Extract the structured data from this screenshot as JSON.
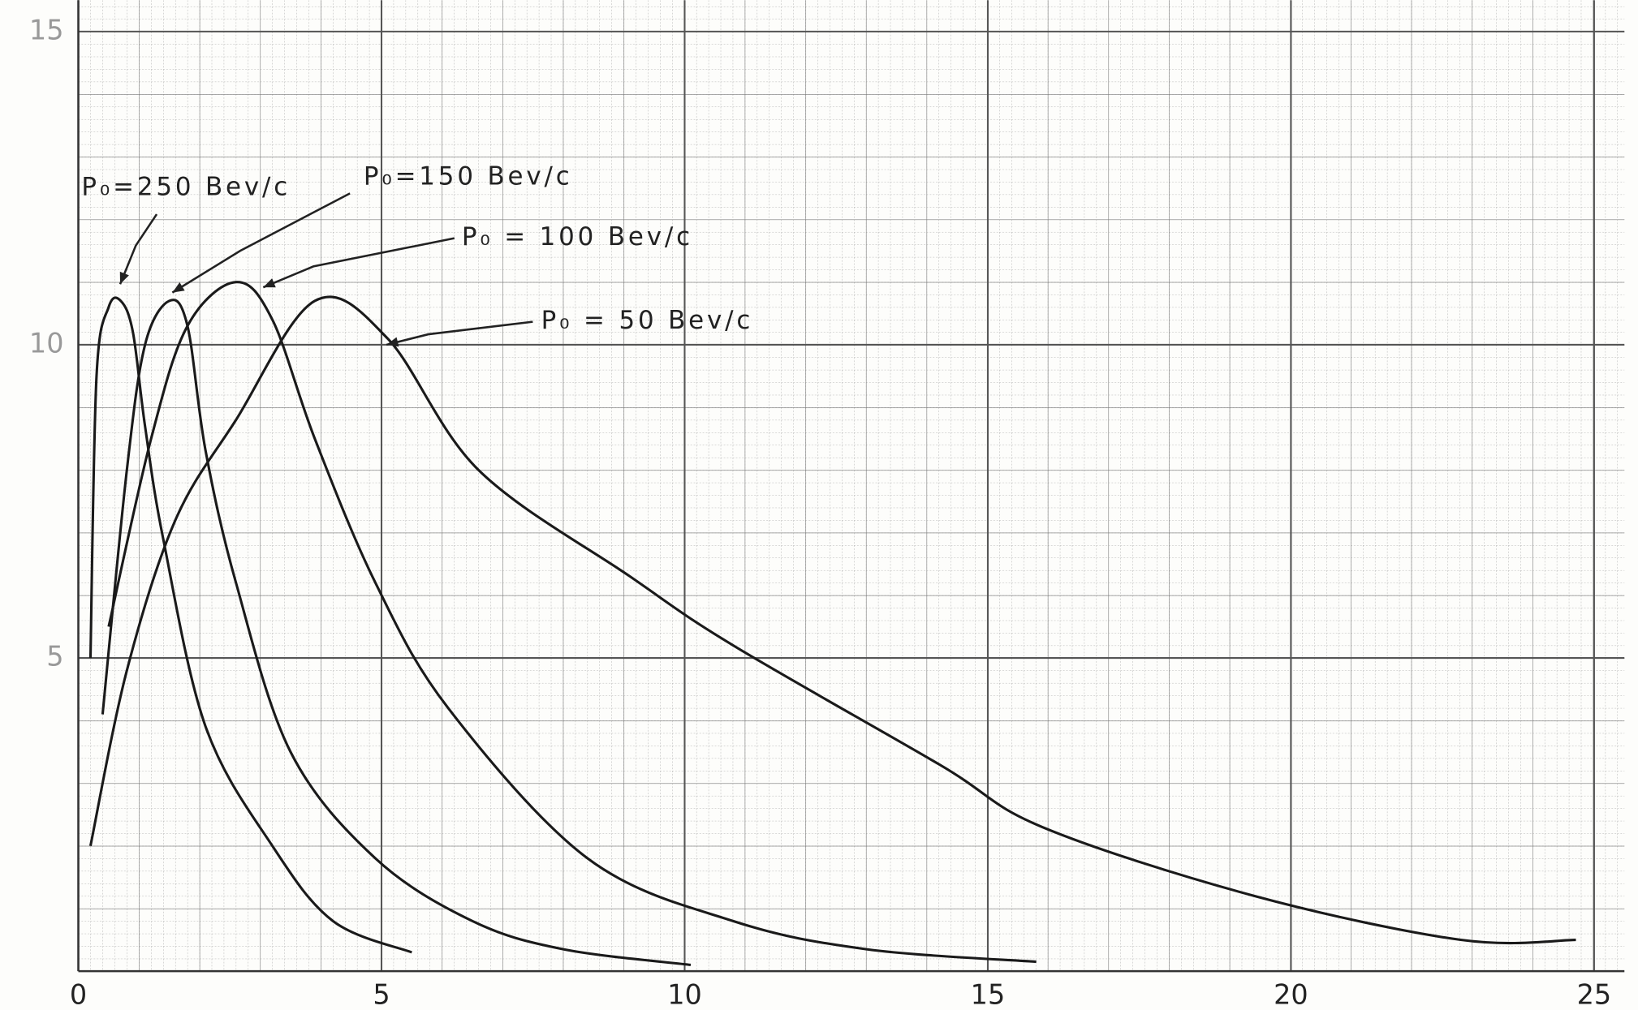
{
  "chart_data": {
    "type": "line",
    "xlim": [
      0,
      25.5
    ],
    "ylim": [
      0,
      15.5
    ],
    "xticks": [
      0,
      5,
      10,
      15,
      20,
      25
    ],
    "yticks": [
      5,
      10,
      15
    ],
    "grid": true,
    "series": [
      {
        "name": "P₀=250 Bev/c",
        "color": "#1a1a1a",
        "x": [
          0.2,
          0.3,
          0.5,
          0.7,
          0.9,
          1.1,
          1.4,
          2.1,
          3.2,
          4.2,
          5.5
        ],
        "values": [
          5.0,
          9.5,
          10.6,
          10.7,
          10.2,
          8.7,
          6.9,
          3.9,
          2.0,
          0.8,
          0.3
        ]
      },
      {
        "name": "P₀=150 Bev/c",
        "color": "#1a1a1a",
        "x": [
          0.4,
          0.8,
          1.1,
          1.5,
          1.8,
          2.1,
          2.6,
          3.5,
          4.9,
          6.5,
          8,
          10.1
        ],
        "values": [
          4.1,
          8.0,
          10.0,
          10.7,
          10.3,
          8.3,
          6.2,
          3.5,
          1.8,
          0.8,
          0.35,
          0.1
        ]
      },
      {
        "name": "P₀ = 100 Bev/c",
        "color": "#1a1a1a",
        "x": [
          0.5,
          1.2,
          1.8,
          2.6,
          3.2,
          3.9,
          4.9,
          6.1,
          8.4,
          10.8,
          13,
          15.8
        ],
        "values": [
          5.5,
          8.5,
          10.3,
          11.0,
          10.4,
          8.5,
          6.2,
          4.2,
          1.8,
          0.8,
          0.35,
          0.15
        ]
      },
      {
        "name": "P₀ = 50 Bev/c",
        "color": "#1a1a1a",
        "x": [
          0.2,
          0.8,
          1.6,
          2.6,
          3.9,
          5.1,
          6.6,
          9.1,
          10.8,
          14.2,
          15.9,
          19.4,
          22.8,
          24.7
        ],
        "values": [
          2.0,
          4.8,
          7.2,
          8.8,
          10.7,
          10.1,
          8.0,
          6.3,
          5.2,
          3.3,
          2.3,
          1.2,
          0.5,
          0.5
        ]
      }
    ]
  }
}
